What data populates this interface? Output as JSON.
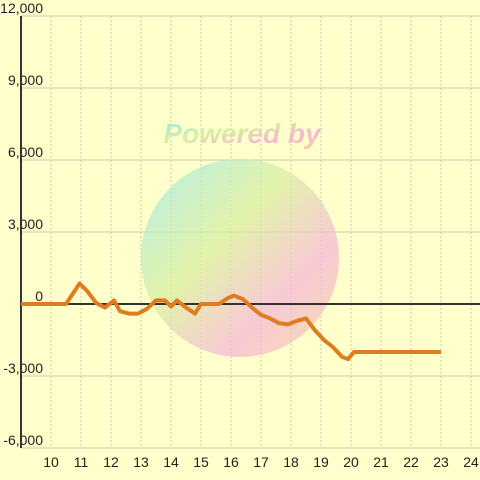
{
  "chart_data": {
    "type": "line",
    "watermark": "Powered by",
    "x": [
      9.0,
      10.5,
      10.95,
      11.2,
      11.5,
      11.8,
      12.1,
      12.3,
      12.6,
      12.9,
      13.2,
      13.5,
      13.8,
      14.0,
      14.2,
      14.5,
      14.8,
      15.0,
      15.3,
      15.6,
      15.9,
      16.1,
      16.4,
      16.7,
      17.0,
      17.3,
      17.6,
      17.9,
      18.2,
      18.5,
      18.8,
      19.1,
      19.4,
      19.7,
      19.9,
      20.1,
      20.5,
      23.0
    ],
    "values": [
      0,
      0,
      850,
      550,
      50,
      -150,
      150,
      -300,
      -400,
      -400,
      -200,
      150,
      150,
      -100,
      150,
      -150,
      -400,
      0,
      0,
      0,
      250,
      350,
      200,
      -150,
      -450,
      -600,
      -800,
      -850,
      -700,
      -600,
      -1100,
      -1500,
      -1800,
      -2200,
      -2300,
      -2000,
      -2000,
      -2000
    ],
    "color": "#e07b20",
    "xlim": [
      9,
      24.3
    ],
    "xticks": [
      10,
      11,
      12,
      13,
      14,
      15,
      16,
      17,
      18,
      19,
      20,
      21,
      22,
      23,
      24
    ],
    "ylim": [
      -6000,
      12000
    ],
    "yticks": [
      {
        "value": -6000,
        "label": "-6,000"
      },
      {
        "value": -3000,
        "label": "-3,000"
      },
      0,
      {
        "value": 3000,
        "label": "3,000"
      },
      {
        "value": 6000,
        "label": "6,000"
      },
      {
        "value": 9000,
        "label": "9,000"
      },
      {
        "value": 12000,
        "label": "12,000"
      }
    ],
    "grid": true
  }
}
